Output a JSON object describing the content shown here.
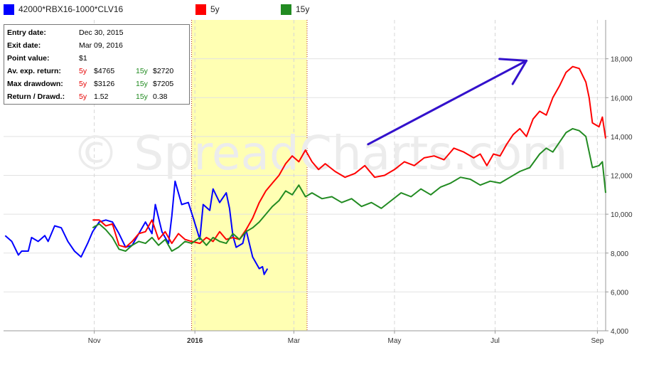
{
  "legend": {
    "series1_label": "42000*RBX16-1000*CLV16",
    "series2_label": "5y",
    "series3_label": "15y",
    "series1_color": "#0000ff",
    "series2_color": "#ff0000",
    "series3_color": "#228b22"
  },
  "info": {
    "entry_label": "Entry date:",
    "entry_value": "Dec 30, 2015",
    "exit_label": "Exit date:",
    "exit_value": "Mar 09, 2016",
    "point_label": "Point value:",
    "point_value": "$1",
    "avg_label": "Av. exp. return:",
    "avg_5y_tag": "5y",
    "avg_5y": "$4765",
    "avg_15y_tag": "15y",
    "avg_15y": "$2720",
    "dd_label": "Max drawdown:",
    "dd_5y_tag": "5y",
    "dd_5y": "$3126",
    "dd_15y_tag": "15y",
    "dd_15y": "$7205",
    "rd_label": "Return / Drawd.:",
    "rd_5y_tag": "5y",
    "rd_5y": "1.52",
    "rd_15y_tag": "15y",
    "rd_15y": "0.38"
  },
  "watermark": "© SpreadCharts.com",
  "chart_data": {
    "type": "line",
    "title": "",
    "xlabel": "",
    "ylabel": "",
    "ylim": [
      4000,
      20000
    ],
    "grid": true,
    "legend_position": "top-left",
    "x_tick_labels": [
      "Nov",
      "2016",
      "Mar",
      "May",
      "Jul",
      "Sep"
    ],
    "x_ticks": [
      {
        "label": "Nov",
        "date": "2015-11-01"
      },
      {
        "label": "2016",
        "date": "2016-01-01"
      },
      {
        "label": "Mar",
        "date": "2016-03-01"
      },
      {
        "label": "May",
        "date": "2016-05-01"
      },
      {
        "label": "Jul",
        "date": "2016-07-01"
      },
      {
        "label": "Sep",
        "date": "2016-09-01"
      }
    ],
    "y_ticks": [
      4000,
      6000,
      8000,
      10000,
      12000,
      14000,
      16000,
      18000
    ],
    "y_tick_labels": [
      "4,000",
      "6,000",
      "8,000",
      "10,000",
      "12,000",
      "14,000",
      "16,000",
      "18,000"
    ],
    "highlight": {
      "start": "2015-12-30",
      "end": "2016-03-09",
      "color": "#ffffb3"
    },
    "annotation_arrow": {
      "from": {
        "date": "2016-04-15",
        "value": 13600
      },
      "to": {
        "date": "2016-07-20",
        "value": 17900
      },
      "color": "#3311cc"
    },
    "series": [
      {
        "name": "42000*RBX16-1000*CLV16",
        "color": "#0000ff",
        "points": [
          [
            "2015-09-08",
            8900
          ],
          [
            "2015-09-12",
            8600
          ],
          [
            "2015-09-16",
            7900
          ],
          [
            "2015-09-18",
            8100
          ],
          [
            "2015-09-22",
            8100
          ],
          [
            "2015-09-24",
            8800
          ],
          [
            "2015-09-28",
            8600
          ],
          [
            "2015-10-02",
            8900
          ],
          [
            "2015-10-04",
            8600
          ],
          [
            "2015-10-08",
            9400
          ],
          [
            "2015-10-12",
            9300
          ],
          [
            "2015-10-16",
            8600
          ],
          [
            "2015-10-20",
            8100
          ],
          [
            "2015-10-24",
            7800
          ],
          [
            "2015-10-28",
            8500
          ],
          [
            "2015-10-31",
            9100
          ],
          [
            "2015-11-04",
            9600
          ],
          [
            "2015-11-08",
            9700
          ],
          [
            "2015-11-12",
            9600
          ],
          [
            "2015-11-16",
            9000
          ],
          [
            "2015-11-20",
            8300
          ],
          [
            "2015-11-24",
            8400
          ],
          [
            "2015-11-28",
            9000
          ],
          [
            "2015-12-02",
            9600
          ],
          [
            "2015-12-06",
            9000
          ],
          [
            "2015-12-08",
            10500
          ],
          [
            "2015-12-12",
            9100
          ],
          [
            "2015-12-16",
            8500
          ],
          [
            "2015-12-18",
            9900
          ],
          [
            "2015-12-20",
            11700
          ],
          [
            "2015-12-24",
            10500
          ],
          [
            "2015-12-28",
            10600
          ],
          [
            "2015-12-31",
            9800
          ],
          [
            "2016-01-04",
            8700
          ],
          [
            "2016-01-06",
            10500
          ],
          [
            "2016-01-10",
            10200
          ],
          [
            "2016-01-12",
            11300
          ],
          [
            "2016-01-16",
            10600
          ],
          [
            "2016-01-20",
            11100
          ],
          [
            "2016-01-22",
            10300
          ],
          [
            "2016-01-24",
            8900
          ],
          [
            "2016-01-26",
            8300
          ],
          [
            "2016-01-30",
            8500
          ],
          [
            "2016-02-01",
            9200
          ],
          [
            "2016-02-05",
            7800
          ],
          [
            "2016-02-09",
            7200
          ],
          [
            "2016-02-11",
            7300
          ],
          [
            "2016-02-12",
            6900
          ],
          [
            "2016-02-14",
            7200
          ]
        ]
      },
      {
        "name": "5y",
        "color": "#ff0000",
        "points": [
          [
            "2015-10-31",
            9700
          ],
          [
            "2015-11-04",
            9700
          ],
          [
            "2015-11-08",
            9400
          ],
          [
            "2015-11-12",
            9500
          ],
          [
            "2015-11-16",
            8400
          ],
          [
            "2015-11-20",
            8300
          ],
          [
            "2015-11-24",
            8600
          ],
          [
            "2015-11-28",
            9000
          ],
          [
            "2015-12-02",
            9100
          ],
          [
            "2015-12-06",
            9700
          ],
          [
            "2015-12-10",
            8700
          ],
          [
            "2015-12-14",
            9100
          ],
          [
            "2015-12-18",
            8500
          ],
          [
            "2015-12-22",
            9000
          ],
          [
            "2015-12-26",
            8700
          ],
          [
            "2015-12-30",
            8600
          ],
          [
            "2016-01-04",
            8500
          ],
          [
            "2016-01-08",
            8800
          ],
          [
            "2016-01-12",
            8600
          ],
          [
            "2016-01-16",
            9100
          ],
          [
            "2016-01-20",
            8700
          ],
          [
            "2016-01-24",
            8800
          ],
          [
            "2016-01-28",
            8700
          ],
          [
            "2016-02-01",
            9200
          ],
          [
            "2016-02-05",
            9800
          ],
          [
            "2016-02-09",
            10600
          ],
          [
            "2016-02-13",
            11200
          ],
          [
            "2016-02-17",
            11600
          ],
          [
            "2016-02-21",
            12000
          ],
          [
            "2016-02-25",
            12600
          ],
          [
            "2016-02-29",
            13000
          ],
          [
            "2016-03-04",
            12700
          ],
          [
            "2016-03-08",
            13300
          ],
          [
            "2016-03-12",
            12700
          ],
          [
            "2016-03-16",
            12300
          ],
          [
            "2016-03-20",
            12600
          ],
          [
            "2016-03-26",
            12200
          ],
          [
            "2016-04-01",
            11900
          ],
          [
            "2016-04-07",
            12100
          ],
          [
            "2016-04-13",
            12500
          ],
          [
            "2016-04-19",
            11900
          ],
          [
            "2016-04-25",
            12000
          ],
          [
            "2016-05-01",
            12300
          ],
          [
            "2016-05-07",
            12700
          ],
          [
            "2016-05-13",
            12500
          ],
          [
            "2016-05-19",
            12900
          ],
          [
            "2016-05-25",
            13000
          ],
          [
            "2016-05-31",
            12800
          ],
          [
            "2016-06-06",
            13400
          ],
          [
            "2016-06-12",
            13200
          ],
          [
            "2016-06-18",
            12900
          ],
          [
            "2016-06-22",
            13100
          ],
          [
            "2016-06-26",
            12500
          ],
          [
            "2016-06-30",
            13100
          ],
          [
            "2016-07-04",
            13000
          ],
          [
            "2016-07-08",
            13600
          ],
          [
            "2016-07-12",
            14100
          ],
          [
            "2016-07-16",
            14400
          ],
          [
            "2016-07-20",
            14000
          ],
          [
            "2016-07-24",
            14900
          ],
          [
            "2016-07-28",
            15300
          ],
          [
            "2016-08-01",
            15100
          ],
          [
            "2016-08-05",
            16000
          ],
          [
            "2016-08-09",
            16600
          ],
          [
            "2016-08-13",
            17300
          ],
          [
            "2016-08-17",
            17600
          ],
          [
            "2016-08-21",
            17500
          ],
          [
            "2016-08-25",
            16800
          ],
          [
            "2016-08-27",
            16000
          ],
          [
            "2016-08-29",
            14700
          ],
          [
            "2016-09-02",
            14500
          ],
          [
            "2016-09-04",
            15000
          ],
          [
            "2016-09-06",
            13900
          ]
        ]
      },
      {
        "name": "15y",
        "color": "#228b22",
        "points": [
          [
            "2015-10-31",
            9300
          ],
          [
            "2015-11-04",
            9500
          ],
          [
            "2015-11-08",
            9200
          ],
          [
            "2015-11-12",
            8800
          ],
          [
            "2015-11-16",
            8200
          ],
          [
            "2015-11-20",
            8100
          ],
          [
            "2015-11-24",
            8400
          ],
          [
            "2015-11-28",
            8600
          ],
          [
            "2015-12-02",
            8500
          ],
          [
            "2015-12-06",
            8800
          ],
          [
            "2015-12-10",
            8400
          ],
          [
            "2015-12-14",
            8700
          ],
          [
            "2015-12-18",
            8100
          ],
          [
            "2015-12-22",
            8300
          ],
          [
            "2015-12-26",
            8600
          ],
          [
            "2015-12-30",
            8500
          ],
          [
            "2016-01-04",
            8800
          ],
          [
            "2016-01-08",
            8400
          ],
          [
            "2016-01-12",
            8800
          ],
          [
            "2016-01-16",
            8600
          ],
          [
            "2016-01-20",
            8500
          ],
          [
            "2016-01-24",
            9000
          ],
          [
            "2016-01-28",
            8700
          ],
          [
            "2016-02-01",
            9100
          ],
          [
            "2016-02-05",
            9300
          ],
          [
            "2016-02-09",
            9600
          ],
          [
            "2016-02-13",
            10000
          ],
          [
            "2016-02-17",
            10400
          ],
          [
            "2016-02-21",
            10700
          ],
          [
            "2016-02-25",
            11200
          ],
          [
            "2016-02-29",
            11000
          ],
          [
            "2016-03-04",
            11500
          ],
          [
            "2016-03-08",
            10900
          ],
          [
            "2016-03-12",
            11100
          ],
          [
            "2016-03-18",
            10800
          ],
          [
            "2016-03-24",
            10900
          ],
          [
            "2016-03-30",
            10600
          ],
          [
            "2016-04-05",
            10800
          ],
          [
            "2016-04-11",
            10400
          ],
          [
            "2016-04-17",
            10600
          ],
          [
            "2016-04-23",
            10300
          ],
          [
            "2016-04-29",
            10700
          ],
          [
            "2016-05-05",
            11100
          ],
          [
            "2016-05-11",
            10900
          ],
          [
            "2016-05-17",
            11300
          ],
          [
            "2016-05-23",
            11000
          ],
          [
            "2016-05-29",
            11400
          ],
          [
            "2016-06-04",
            11600
          ],
          [
            "2016-06-10",
            11900
          ],
          [
            "2016-06-16",
            11800
          ],
          [
            "2016-06-22",
            11500
          ],
          [
            "2016-06-28",
            11700
          ],
          [
            "2016-07-04",
            11600
          ],
          [
            "2016-07-10",
            11900
          ],
          [
            "2016-07-16",
            12200
          ],
          [
            "2016-07-22",
            12400
          ],
          [
            "2016-07-28",
            13100
          ],
          [
            "2016-08-01",
            13400
          ],
          [
            "2016-08-05",
            13200
          ],
          [
            "2016-08-09",
            13700
          ],
          [
            "2016-08-13",
            14200
          ],
          [
            "2016-08-17",
            14400
          ],
          [
            "2016-08-21",
            14300
          ],
          [
            "2016-08-25",
            14000
          ],
          [
            "2016-08-27",
            13200
          ],
          [
            "2016-08-29",
            12400
          ],
          [
            "2016-09-02",
            12500
          ],
          [
            "2016-09-04",
            12700
          ],
          [
            "2016-09-06",
            11100
          ]
        ]
      }
    ]
  }
}
